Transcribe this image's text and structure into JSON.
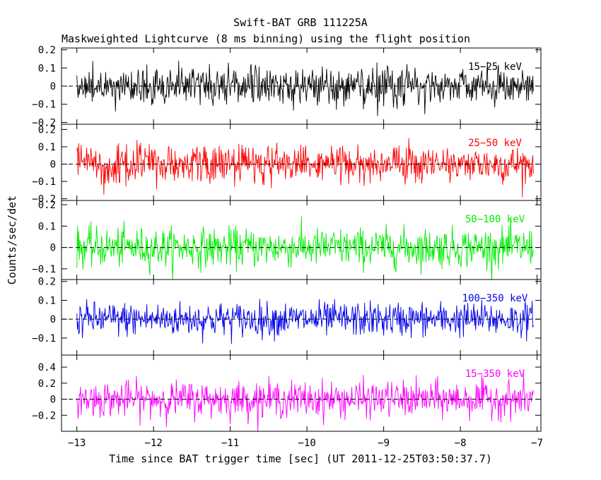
{
  "chart_data": {
    "type": "line",
    "title": "Swift-BAT GRB 111225A",
    "subtitle": "Maskweighted Lightcurve (8 ms binning) using the flight position",
    "xlabel": "Time since BAT trigger time [sec] (UT 2011-12-25T03:50:37.7)",
    "ylabel": "Counts/sec/det",
    "xlim": [
      -13.2,
      -6.95
    ],
    "data_x_range": [
      -13.0,
      -7.05
    ],
    "bin_width_sec": 0.008,
    "x_ticks": [
      -13,
      -12,
      -11,
      -10,
      -9,
      -8,
      -7
    ],
    "x_tick_labels": [
      "−13",
      "−12",
      "−11",
      "−10",
      "−9",
      "−8",
      "−7"
    ],
    "panels": [
      {
        "band": "15−25 keV",
        "color": "#000000",
        "ylim": [
          -0.21,
          0.21
        ],
        "y_ticks": [
          -0.2,
          -0.1,
          0,
          0.1,
          0.2
        ],
        "y_tick_labels": [
          "−0.2",
          "−0.1",
          "0",
          "0.1",
          "0.2"
        ],
        "noise_sigma": 0.055,
        "mean": 0.0
      },
      {
        "band": "25−50 keV",
        "color": "#ff0000",
        "ylim": [
          -0.21,
          0.23
        ],
        "y_ticks": [
          -0.2,
          -0.1,
          0,
          0.1,
          0.2
        ],
        "y_tick_labels": [
          "−0.2",
          "−0.1",
          "0",
          "0.1",
          "0.2"
        ],
        "noise_sigma": 0.055,
        "mean": 0.0
      },
      {
        "band": "50−100 keV",
        "color": "#00ee00",
        "ylim": [
          -0.15,
          0.22
        ],
        "y_ticks": [
          -0.1,
          0,
          0.1,
          0.2
        ],
        "y_tick_labels": [
          "−0.1",
          "0",
          "0.1",
          "0.2"
        ],
        "noise_sigma": 0.045,
        "mean": 0.0
      },
      {
        "band": "100−350 keV",
        "color": "#0000ee",
        "ylim": [
          -0.19,
          0.21
        ],
        "y_ticks": [
          -0.1,
          0,
          0.1,
          0.2
        ],
        "y_tick_labels": [
          "−0.1",
          "0",
          "0.1",
          "0.2"
        ],
        "noise_sigma": 0.045,
        "mean": 0.0
      },
      {
        "band": "15−350 keV",
        "color": "#ff00ff",
        "ylim": [
          -0.4,
          0.55
        ],
        "y_ticks": [
          -0.2,
          0,
          0.2,
          0.4
        ],
        "y_tick_labels": [
          "−0.2",
          "0",
          "0.2",
          "0.4"
        ],
        "noise_sigma": 0.11,
        "mean": 0.0
      }
    ]
  }
}
